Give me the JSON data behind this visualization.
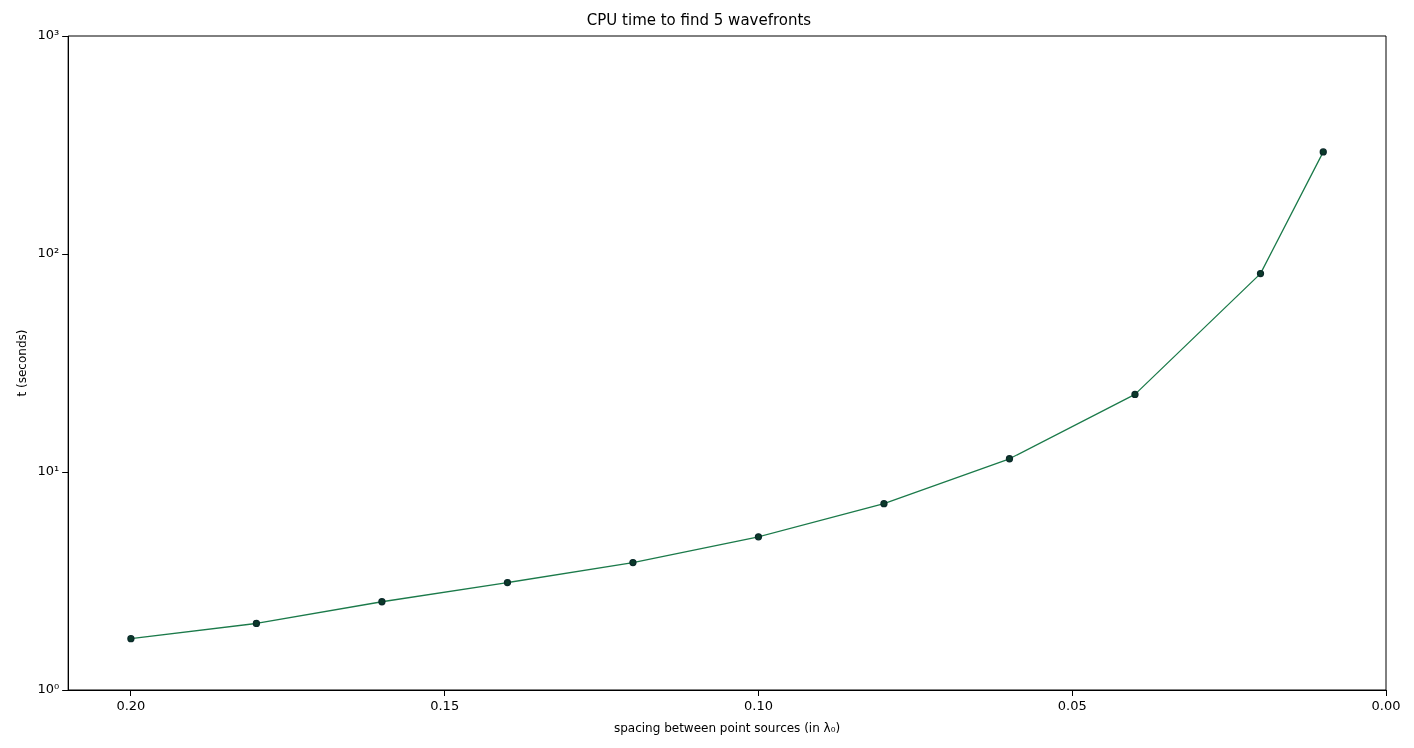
{
  "chart_data": {
    "type": "line",
    "title": "CPU time to find 5 wavefronts",
    "xlabel": "spacing between point sources (in λ₀)",
    "ylabel": "t (seconds)",
    "x": [
      0.2,
      0.18,
      0.16,
      0.14,
      0.12,
      0.1,
      0.08,
      0.06,
      0.04,
      0.02,
      0.01
    ],
    "series": [
      {
        "color": "#1b7a4a",
        "values": [
          1.72,
          2.02,
          2.54,
          3.11,
          3.84,
          5.04,
          7.16,
          11.5,
          22.7,
          81.3,
          294
        ]
      }
    ],
    "xlim": [
      0.21,
      0
    ],
    "xticks": [
      {
        "value": 0.2,
        "label": "0.20"
      },
      {
        "value": 0.15,
        "label": "0.15"
      },
      {
        "value": 0.1,
        "label": "0.10"
      },
      {
        "value": 0.05,
        "label": "0.05"
      },
      {
        "value": 0,
        "label": "0.00"
      }
    ],
    "ylim": [
      1,
      1000
    ],
    "yticks": [
      {
        "value": 1,
        "label": "10⁰"
      },
      {
        "value": 10,
        "label": "10¹"
      },
      {
        "value": 100,
        "label": "10²"
      },
      {
        "value": 1000,
        "label": "10³"
      }
    ],
    "log": "y",
    "grid": false,
    "legend": false,
    "marker": "circle",
    "line_style": "solid"
  }
}
